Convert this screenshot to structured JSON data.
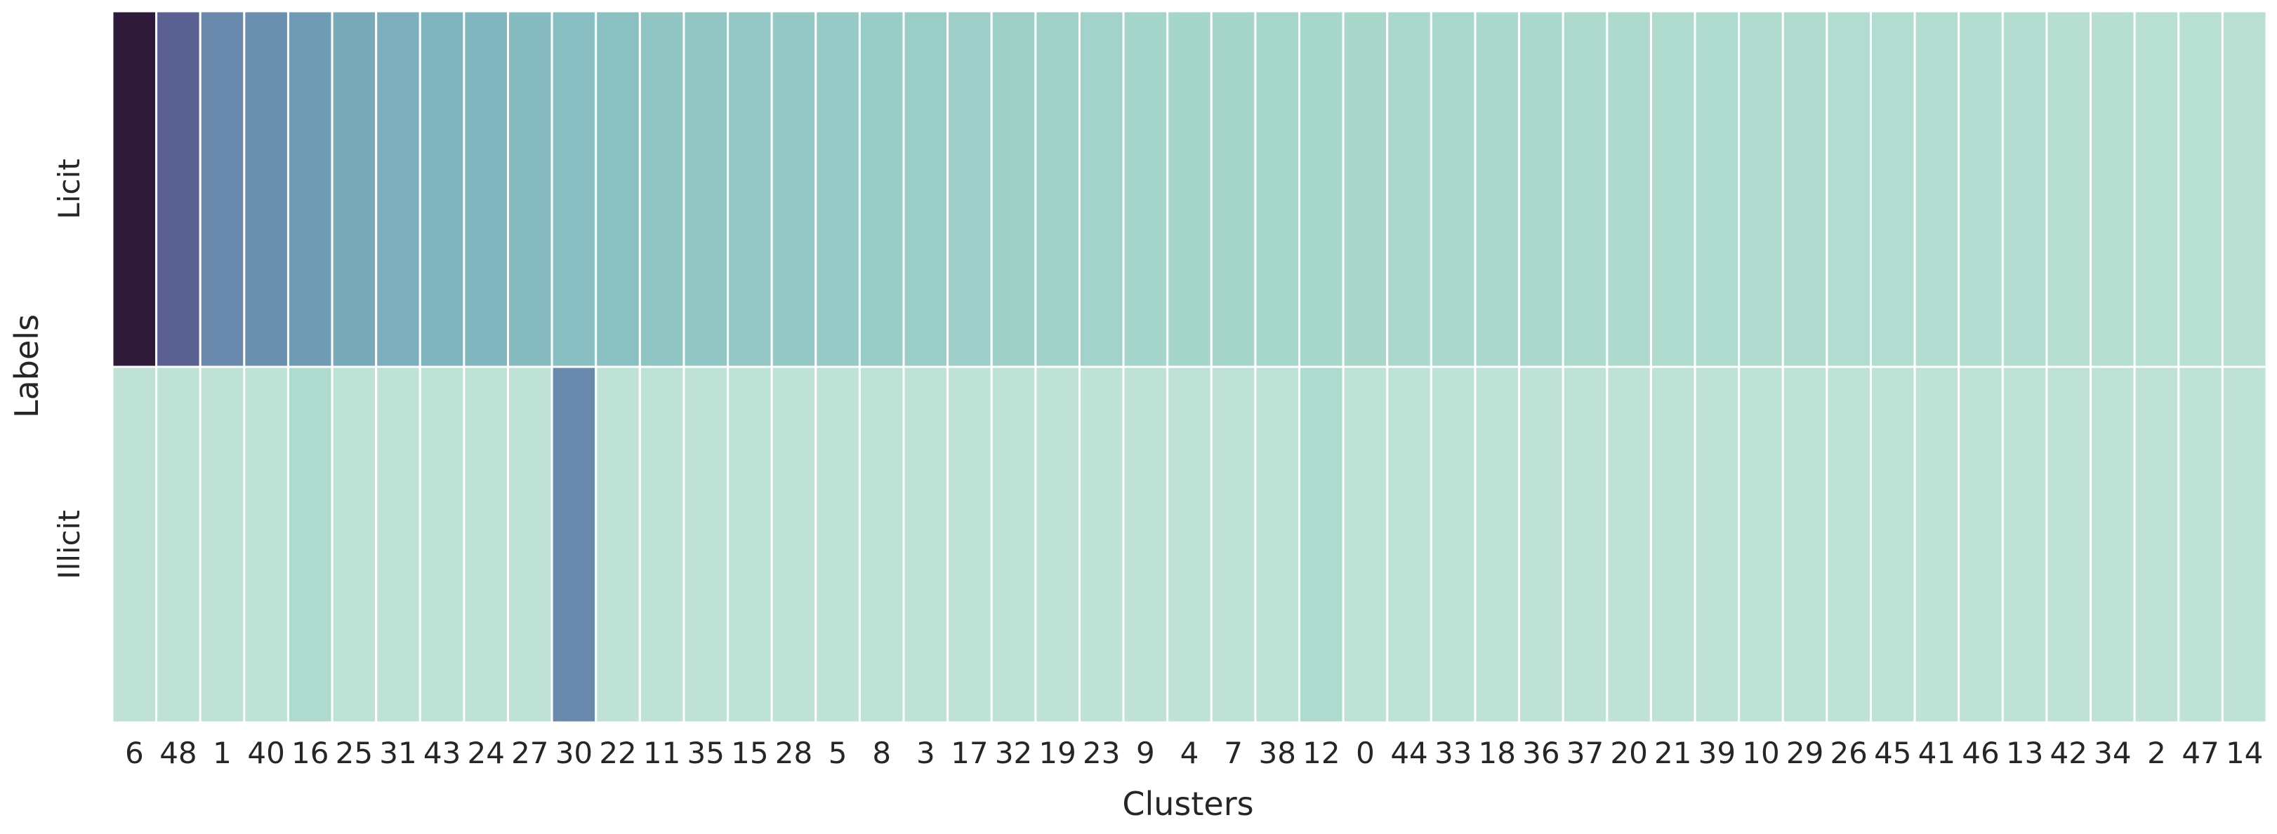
{
  "chart_data": {
    "type": "heatmap",
    "title": "",
    "xlabel": "Clusters",
    "ylabel": "Labels",
    "rows": [
      "Licit",
      "Illicit"
    ],
    "columns": [
      "6",
      "48",
      "1",
      "40",
      "16",
      "25",
      "31",
      "43",
      "24",
      "27",
      "30",
      "22",
      "11",
      "35",
      "15",
      "28",
      "5",
      "8",
      "3",
      "17",
      "32",
      "19",
      "23",
      "9",
      "4",
      "7",
      "38",
      "12",
      "0",
      "44",
      "33",
      "18",
      "36",
      "37",
      "20",
      "21",
      "39",
      "10",
      "29",
      "26",
      "45",
      "41",
      "46",
      "13",
      "42",
      "34",
      "2",
      "47",
      "14"
    ],
    "values": [
      [
        1.0,
        0.78,
        0.6,
        0.58,
        0.53,
        0.46,
        0.43,
        0.41,
        0.39,
        0.36,
        0.34,
        0.33,
        0.3,
        0.29,
        0.28,
        0.27,
        0.26,
        0.25,
        0.24,
        0.23,
        0.22,
        0.21,
        0.2,
        0.19,
        0.18,
        0.18,
        0.17,
        0.17,
        0.16,
        0.15,
        0.15,
        0.14,
        0.14,
        0.13,
        0.13,
        0.12,
        0.12,
        0.11,
        0.11,
        0.1,
        0.1,
        0.1,
        0.09,
        0.09,
        0.08,
        0.08,
        0.07,
        0.07,
        0.06
      ],
      [
        0.02,
        0.02,
        0.02,
        0.02,
        0.12,
        0.02,
        0.02,
        0.02,
        0.02,
        0.02,
        0.6,
        0.02,
        0.02,
        0.02,
        0.02,
        0.02,
        0.02,
        0.02,
        0.02,
        0.02,
        0.02,
        0.02,
        0.02,
        0.02,
        0.02,
        0.02,
        0.02,
        0.12,
        0.02,
        0.02,
        0.02,
        0.02,
        0.02,
        0.02,
        0.02,
        0.02,
        0.02,
        0.02,
        0.02,
        0.02,
        0.02,
        0.02,
        0.02,
        0.02,
        0.02,
        0.02,
        0.02,
        0.02,
        0.02
      ]
    ],
    "colormap": [
      "#c2e4d7",
      "#a8d7cb",
      "#8ac0c2",
      "#73a3b8",
      "#6279a6",
      "#565589",
      "#2f1a39"
    ],
    "colorbar": false,
    "grid": false
  }
}
